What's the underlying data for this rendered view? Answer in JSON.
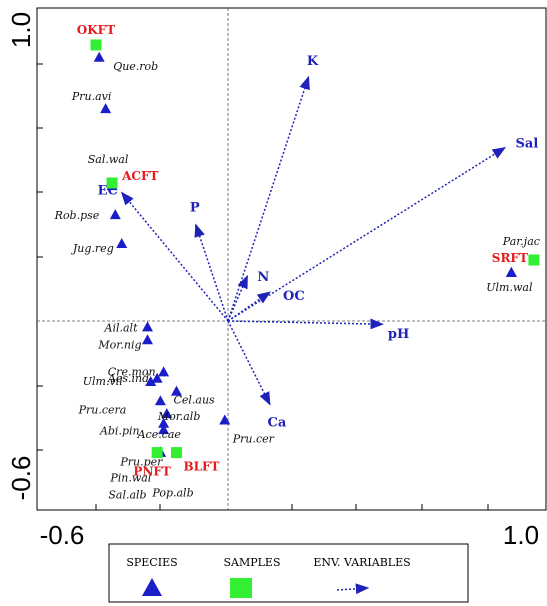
{
  "chart_data": {
    "type": "scatter",
    "title": "",
    "xlim": [
      -0.6,
      1.0
    ],
    "ylim": [
      -0.6,
      1.0
    ],
    "x_ticks": [
      "-0.6",
      "1.0"
    ],
    "y_ticks": [
      "1.0",
      "-0.6"
    ],
    "grid": false,
    "colors": {
      "species": "#1a1ec8",
      "sample": "#33ee33",
      "sample_label": "#e31b1b",
      "env_arrow": "#1e22b8"
    },
    "species": [
      {
        "label": "Que.rob",
        "x": -0.4,
        "y": 0.82
      },
      {
        "label": "Pru.avi",
        "x": -0.38,
        "y": 0.66
      },
      {
        "label": "Sal.wal",
        "x": -0.36,
        "y": 0.42
      },
      {
        "label": "Rob.pse",
        "x": -0.35,
        "y": 0.33
      },
      {
        "label": "Jug.reg",
        "x": -0.33,
        "y": 0.24
      },
      {
        "label": "Par.jac",
        "x": 0.88,
        "y": 0.15
      },
      {
        "label": "Ulm.wal",
        "x": 0.88,
        "y": 0.15
      },
      {
        "label": "Ail.alt",
        "x": -0.25,
        "y": -0.02
      },
      {
        "label": "Mor.nig",
        "x": -0.25,
        "y": -0.06
      },
      {
        "label": "Ulm.vil",
        "x": -0.24,
        "y": -0.19
      },
      {
        "label": "Aes.ind",
        "x": -0.22,
        "y": -0.18
      },
      {
        "label": "Cre.mon",
        "x": -0.2,
        "y": -0.16
      },
      {
        "label": "Cel.aus",
        "x": -0.16,
        "y": -0.22
      },
      {
        "label": "Pru.cera",
        "x": -0.21,
        "y": -0.25
      },
      {
        "label": "Mor.alb",
        "x": -0.19,
        "y": -0.29
      },
      {
        "label": "Abi.pin",
        "x": -0.2,
        "y": -0.32
      },
      {
        "label": "Ace.cae",
        "x": -0.2,
        "y": -0.34
      },
      {
        "label": "Pru.cer",
        "x": -0.01,
        "y": -0.31
      },
      {
        "label": "Pru.per",
        "x": -0.21,
        "y": -0.41
      },
      {
        "label": "Pin.wal",
        "x": -0.21,
        "y": -0.41
      },
      {
        "label": "Sal.alb",
        "x": -0.21,
        "y": -0.41
      },
      {
        "label": "Pop.alb",
        "x": -0.21,
        "y": -0.41
      }
    ],
    "samples": [
      {
        "label": "OKFT",
        "x": -0.41,
        "y": 0.86
      },
      {
        "label": "ACFT",
        "x": -0.36,
        "y": 0.43
      },
      {
        "label": "SRFT",
        "x": 0.95,
        "y": 0.19
      },
      {
        "label": "PNFT",
        "x": -0.22,
        "y": -0.41
      },
      {
        "label": "BLFT",
        "x": -0.16,
        "y": -0.41
      }
    ],
    "env_variables": [
      {
        "label": "K",
        "x": 0.25,
        "y": 0.76
      },
      {
        "label": "Sal",
        "x": 0.86,
        "y": 0.54
      },
      {
        "label": "EC",
        "x": -0.33,
        "y": 0.4
      },
      {
        "label": "P",
        "x": -0.1,
        "y": 0.3
      },
      {
        "label": "N",
        "x": 0.06,
        "y": 0.14
      },
      {
        "label": "OC",
        "x": 0.13,
        "y": 0.09
      },
      {
        "label": "pH",
        "x": 0.48,
        "y": -0.01
      },
      {
        "label": "Ca",
        "x": 0.13,
        "y": -0.26
      }
    ],
    "legend": {
      "position": "bottom",
      "items": [
        {
          "label": "SPECIES",
          "symbol": "triangle"
        },
        {
          "label": "SAMPLES",
          "symbol": "square"
        },
        {
          "label": "ENV. VARIABLES",
          "symbol": "arrow"
        }
      ]
    }
  }
}
